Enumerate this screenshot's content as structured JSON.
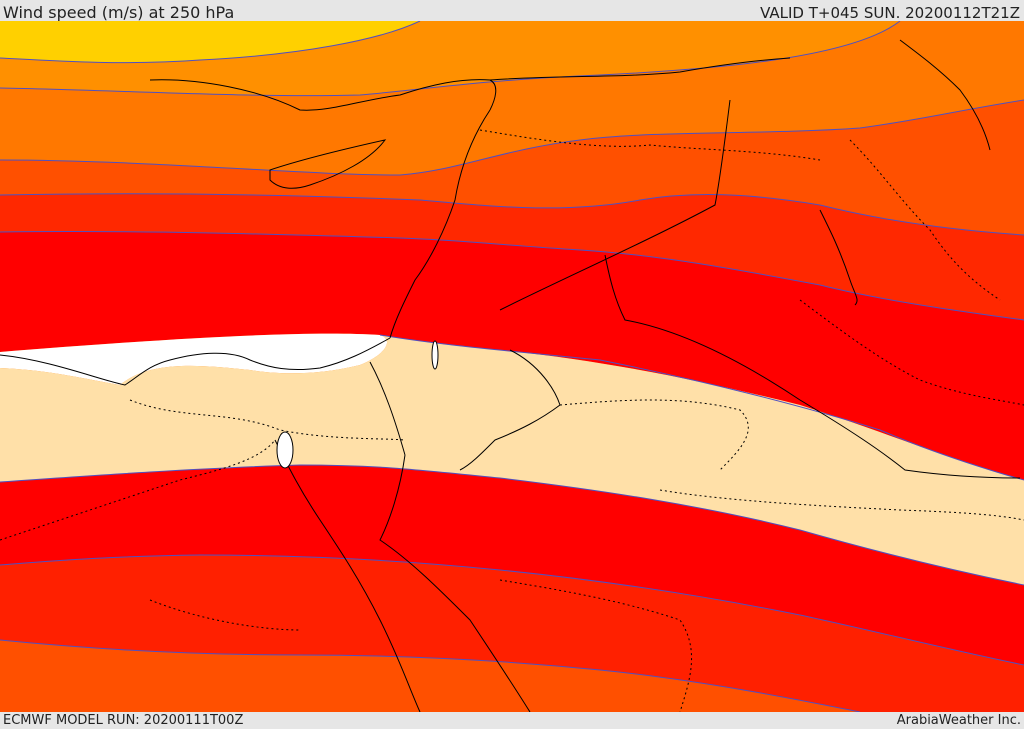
{
  "header": {
    "title": "Wind speed (m/s) at 250 hPa",
    "valid": "VALID T+045 SUN. 20200112T21Z"
  },
  "footer": {
    "model_run": "ECMWF MODEL RUN: 20200111T00Z",
    "credit": "ArabiaWeather Inc."
  },
  "map": {
    "field": "wind speed 250 hPa",
    "palette": {
      "calm": "#ffffff",
      "low": "#ffe0a8",
      "band_red": "#ff0000",
      "band_redorange": "#ff2000",
      "band_orange": "#ff5000",
      "band_lightorange": "#ff7800",
      "band_amber": "#ffa000",
      "band_yellow": "#ffe000",
      "contour": "#5050c0",
      "coast": "#000000"
    }
  }
}
